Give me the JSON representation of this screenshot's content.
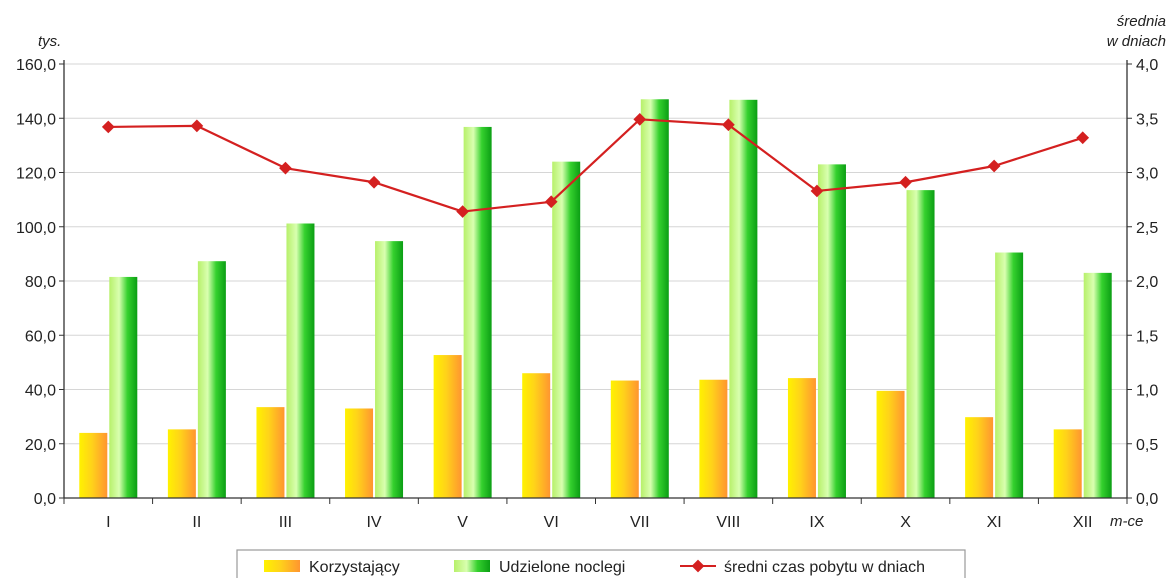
{
  "chart_data": {
    "type": "bar",
    "categories": [
      "I",
      "II",
      "III",
      "IV",
      "V",
      "VI",
      "VII",
      "VIII",
      "IX",
      "X",
      "XI",
      "XII"
    ],
    "y_left_label": "tys.",
    "y_right_label_line1": "średnia",
    "y_right_label_line2": "w dniach",
    "x_unit": "m-ce",
    "y_left_range": [
      0,
      160
    ],
    "y_left_ticks": [
      "0,0",
      "20,0",
      "40,0",
      "60,0",
      "80,0",
      "100,0",
      "120,0",
      "140,0",
      "160,0"
    ],
    "y_right_range": [
      0,
      4
    ],
    "y_right_ticks": [
      "0,0",
      "0,5",
      "1,0",
      "1,5",
      "2,0",
      "2,5",
      "3,0",
      "3,5",
      "4,0"
    ],
    "series": [
      {
        "name": "Korzystający",
        "kind": "bar",
        "axis": "left",
        "colors": [
          "#ffe600",
          "#ff9c2e"
        ],
        "values": [
          24.0,
          25.3,
          33.5,
          33.0,
          52.7,
          46.0,
          43.3,
          43.6,
          44.2,
          39.5,
          29.8,
          25.3
        ]
      },
      {
        "name": "Udzielone noclegi",
        "kind": "bar",
        "axis": "left",
        "colors": [
          "#c8ff9a",
          "#12b812"
        ],
        "values": [
          81.5,
          87.3,
          101.2,
          94.7,
          136.8,
          124.0,
          147.0,
          146.8,
          123.0,
          113.5,
          90.5,
          83.0
        ]
      },
      {
        "name": "średni czas pobytu w dniach",
        "kind": "line",
        "axis": "right",
        "color": "#d42020",
        "values": [
          3.42,
          3.43,
          3.04,
          2.91,
          2.64,
          2.73,
          3.49,
          3.44,
          2.83,
          2.91,
          3.06,
          3.32
        ]
      }
    ],
    "grid": "horizontal",
    "legend_position": "bottom"
  }
}
